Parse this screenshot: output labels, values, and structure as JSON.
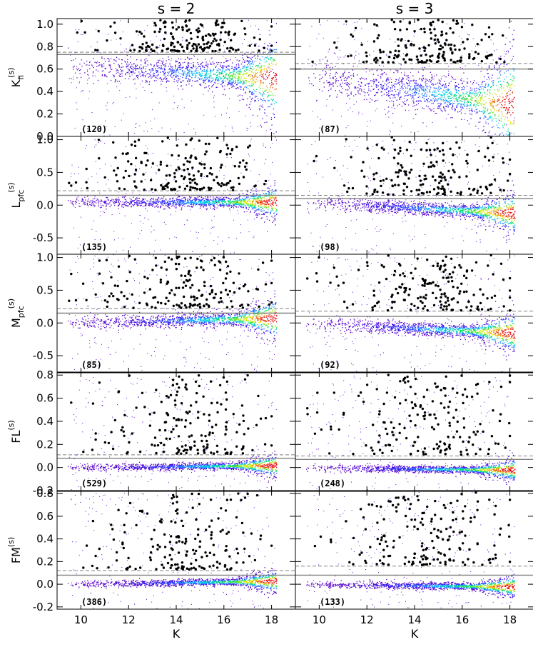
{
  "figure": {
    "column_labels": [
      "s = 2",
      "s = 3"
    ],
    "xlabel": "K"
  },
  "chart_data": [
    {
      "type": "scatter",
      "row": 0,
      "col": 0,
      "ylabel": {
        "main": "K",
        "sub": "fi",
        "sup": "(s)"
      },
      "count_label": "(120)",
      "xlim": [
        9,
        19
      ],
      "ylim": [
        0.0,
        1.05
      ],
      "xticks": [
        10,
        12,
        14,
        16,
        18
      ],
      "yticks": [
        0.0,
        0.2,
        0.4,
        0.6,
        0.8,
        1.0
      ],
      "ytick_labels": [
        "0.0",
        "0.2",
        "0.4",
        "0.6",
        "0.8",
        "1.0"
      ],
      "threshold_solid": 0.73,
      "threshold_dashed": 0.75,
      "density": {
        "trend_start": 0.63,
        "trend_end": 0.52,
        "spread": 0.06,
        "curve": 0
      }
    },
    {
      "type": "scatter",
      "row": 0,
      "col": 1,
      "count_label": "(87)",
      "xlim": [
        9,
        19
      ],
      "ylim": [
        0.0,
        1.05
      ],
      "xticks": [
        10,
        12,
        14,
        16,
        18
      ],
      "yticks": [
        0.0,
        0.2,
        0.4,
        0.6,
        0.8,
        1.0
      ],
      "threshold_solid": 0.6,
      "threshold_dashed": 0.65,
      "density": {
        "trend_start": 0.55,
        "trend_end": 0.28,
        "spread": 0.08,
        "curve": 0
      }
    },
    {
      "type": "scatter",
      "row": 1,
      "col": 0,
      "ylabel": {
        "main": "L",
        "sub": "pfc",
        "sup": "(s)"
      },
      "count_label": "(135)",
      "xlim": [
        9,
        19
      ],
      "ylim": [
        -0.75,
        1.05
      ],
      "xticks": [
        10,
        12,
        14,
        16,
        18
      ],
      "yticks": [
        -0.5,
        0.0,
        0.5,
        1.0
      ],
      "ytick_labels": [
        "-0.5",
        "0.0",
        "0.5",
        "1.0"
      ],
      "threshold_solid": 0.15,
      "threshold_dashed": 0.22,
      "density": {
        "trend_start": 0.05,
        "trend_end": 0.05,
        "spread": 0.04,
        "curve": 0
      }
    },
    {
      "type": "scatter",
      "row": 1,
      "col": 1,
      "count_label": "(98)",
      "xlim": [
        9,
        19
      ],
      "ylim": [
        -0.75,
        1.05
      ],
      "xticks": [
        10,
        12,
        14,
        16,
        18
      ],
      "yticks": [
        -0.5,
        0.0,
        0.5,
        1.0
      ],
      "threshold_solid": 0.1,
      "threshold_dashed": 0.15,
      "density": {
        "trend_start": 0.05,
        "trend_end": -0.12,
        "spread": 0.05,
        "curve": 0
      }
    },
    {
      "type": "scatter",
      "row": 2,
      "col": 0,
      "ylabel": {
        "main": "M",
        "sub": "pfc",
        "sup": "(s)"
      },
      "count_label": "(85)",
      "xlim": [
        9,
        19
      ],
      "ylim": [
        -0.75,
        1.05
      ],
      "xticks": [
        10,
        12,
        14,
        16,
        18
      ],
      "yticks": [
        -0.5,
        0.0,
        0.5,
        1.0
      ],
      "ytick_labels": [
        "-0.5",
        "0.0",
        "0.5",
        "1.0"
      ],
      "threshold_solid": 0.15,
      "threshold_dashed": 0.22,
      "density": {
        "trend_start": 0.0,
        "trend_end": 0.08,
        "spread": 0.05,
        "curve": 0
      }
    },
    {
      "type": "scatter",
      "row": 2,
      "col": 1,
      "count_label": "(92)",
      "xlim": [
        9,
        19
      ],
      "ylim": [
        -0.75,
        1.05
      ],
      "xticks": [
        10,
        12,
        14,
        16,
        18
      ],
      "yticks": [
        -0.5,
        0.0,
        0.5,
        1.0
      ],
      "threshold_solid": 0.1,
      "threshold_dashed": 0.18,
      "density": {
        "trend_start": 0.0,
        "trend_end": -0.15,
        "spread": 0.05,
        "curve": 0
      }
    },
    {
      "type": "scatter",
      "row": 3,
      "col": 0,
      "ylabel": {
        "main": "FL",
        "sub": "",
        "sup": "(s)"
      },
      "count_label": "(529)",
      "xlim": [
        9,
        19
      ],
      "ylim": [
        -0.2,
        0.82
      ],
      "xticks": [
        10,
        12,
        14,
        16,
        18
      ],
      "yticks": [
        -0.2,
        0.0,
        0.2,
        0.4,
        0.6,
        0.8
      ],
      "ytick_labels": [
        "-0.2",
        "0.0",
        "0.2",
        "0.4",
        "0.6",
        "0.8"
      ],
      "threshold_solid": 0.08,
      "threshold_dashed": 0.11,
      "density": {
        "trend_start": 0.0,
        "trend_end": 0.02,
        "spread": 0.015,
        "curve": 0
      }
    },
    {
      "type": "scatter",
      "row": 3,
      "col": 1,
      "count_label": "(248)",
      "xlim": [
        9,
        19
      ],
      "ylim": [
        -0.2,
        0.82
      ],
      "xticks": [
        10,
        12,
        14,
        16,
        18
      ],
      "yticks": [
        -0.2,
        0.0,
        0.2,
        0.4,
        0.6,
        0.8
      ],
      "threshold_solid": 0.07,
      "threshold_dashed": 0.1,
      "density": {
        "trend_start": 0.0,
        "trend_end": -0.02,
        "spread": 0.015,
        "curve": 0
      }
    },
    {
      "type": "scatter",
      "row": 4,
      "col": 0,
      "ylabel": {
        "main": "FM",
        "sub": "",
        "sup": "(s)"
      },
      "count_label": "(386)",
      "xlim": [
        9,
        19
      ],
      "ylim": [
        -0.22,
        0.82
      ],
      "xticks": [
        10,
        12,
        14,
        16,
        18
      ],
      "yticks": [
        -0.2,
        0.0,
        0.2,
        0.4,
        0.6,
        0.8
      ],
      "ytick_labels": [
        "-0.2",
        "0.0",
        "0.2",
        "0.4",
        "0.6",
        "0.8"
      ],
      "threshold_solid": 0.08,
      "threshold_dashed": 0.12,
      "density": {
        "trend_start": 0.0,
        "trend_end": 0.03,
        "spread": 0.015,
        "curve": 0
      }
    },
    {
      "type": "scatter",
      "row": 4,
      "col": 1,
      "count_label": "(133)",
      "xlim": [
        9,
        19
      ],
      "ylim": [
        -0.22,
        0.82
      ],
      "xticks": [
        10,
        12,
        14,
        16,
        18
      ],
      "yticks": [
        -0.2,
        0.0,
        0.2,
        0.4,
        0.6,
        0.8
      ],
      "threshold_solid": 0.08,
      "threshold_dashed": 0.16,
      "density": {
        "trend_start": 0.0,
        "trend_end": -0.02,
        "spread": 0.015,
        "curve": 0
      }
    }
  ],
  "colors": {
    "outlier_points": "#000000",
    "threshold_line": "#808080",
    "density_low": "#5a00c8",
    "density_high": "#e60000"
  }
}
